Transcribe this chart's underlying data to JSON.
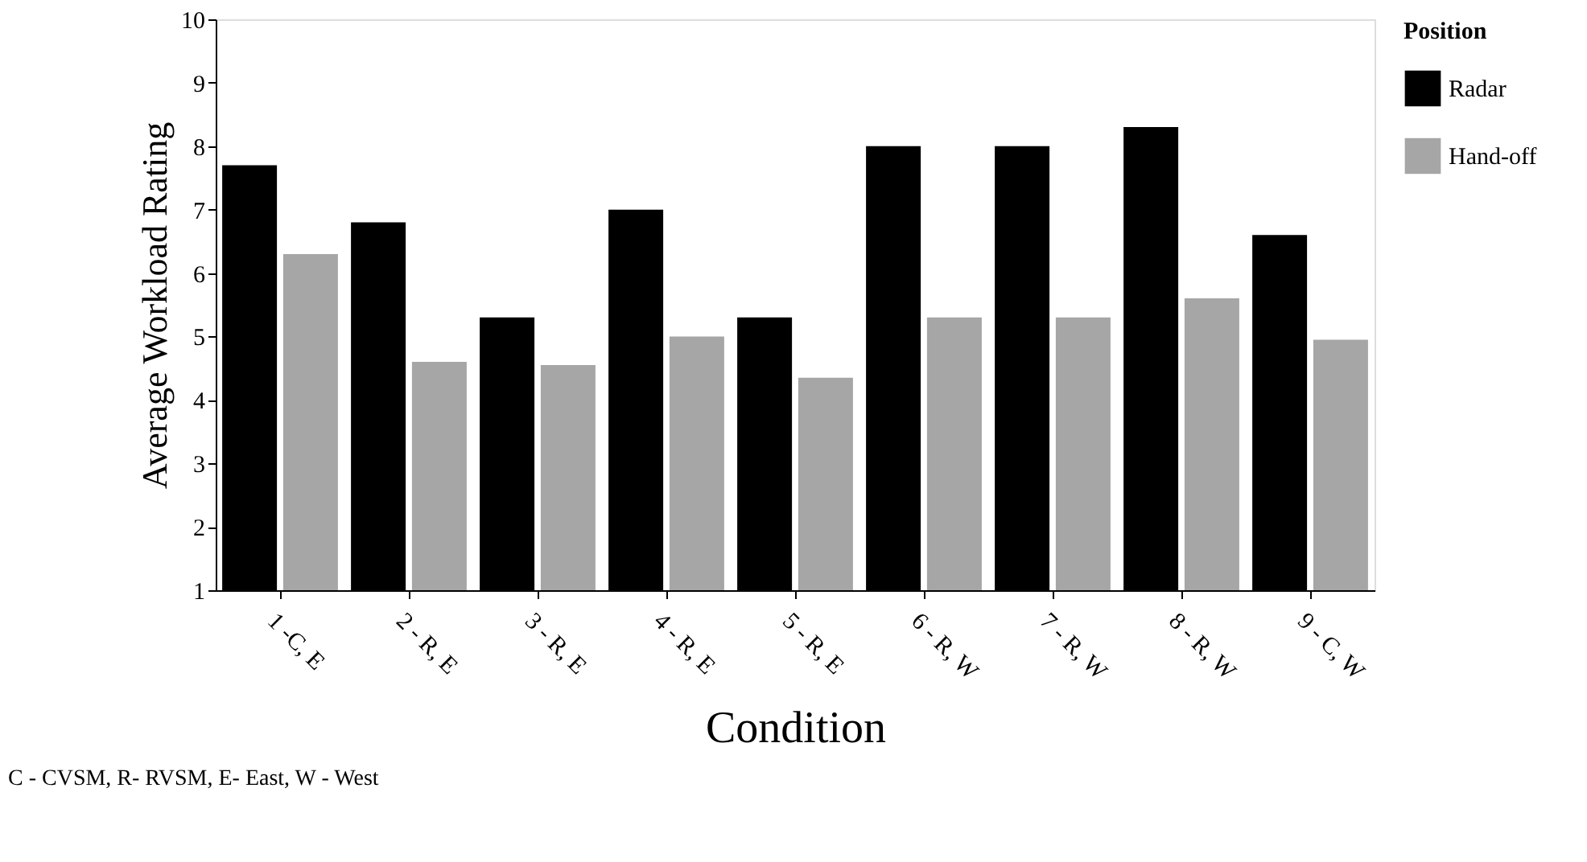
{
  "chart_data": {
    "type": "bar",
    "categories": [
      "1 -C, E",
      "2 - R, E",
      "3 - R, E",
      "4 - R, E",
      "5 - R, E",
      "6 - R, W",
      "7 - R, W",
      "8 - R, W",
      "9 - C, W"
    ],
    "series": [
      {
        "name": "Radar",
        "color": "#000000",
        "values": [
          7.7,
          6.8,
          5.3,
          7.0,
          5.3,
          8.0,
          8.0,
          8.3,
          6.6
        ]
      },
      {
        "name": "Hand-off",
        "color": "#a6a6a6",
        "values": [
          6.3,
          4.6,
          4.55,
          5.0,
          4.35,
          5.3,
          5.3,
          5.6,
          4.95
        ]
      }
    ],
    "xlabel": "Condition",
    "ylabel": "Average Workload Rating",
    "legend_title": "Position",
    "ylim": [
      1,
      10
    ],
    "yticks": [
      1,
      2,
      3,
      4,
      5,
      6,
      7,
      8,
      9,
      10
    ],
    "grid": false,
    "legend": "right",
    "annotations": [
      "C - CVSM, R- RVSM, E- East, W - West"
    ]
  }
}
